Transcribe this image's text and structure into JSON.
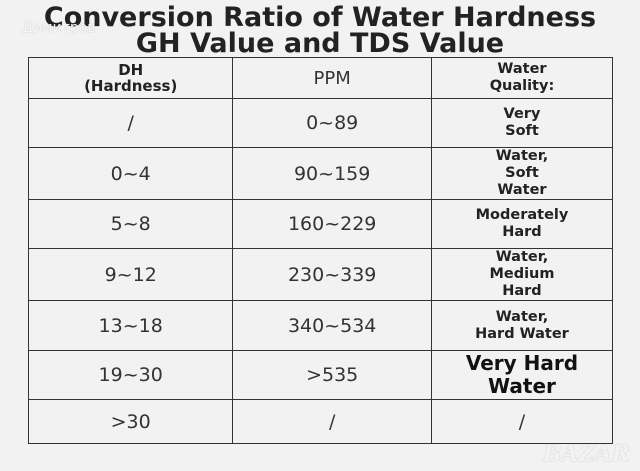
{
  "title_line1": "Conversion Ratio of Water Hardness",
  "title_line2": "GH Value and TDS Value",
  "watermark_user": "Димитров",
  "logo": "BAZAR",
  "headers": {
    "dh": "DH\n(Hardness)",
    "ppm": "PPM",
    "quality": "Water\nQuality:"
  },
  "rows": [
    {
      "dh": "/",
      "ppm": "0~89",
      "quality": "Very\nSoft"
    },
    {
      "dh": "0~4",
      "ppm": "90~159",
      "quality": "Water,\nSoft\nWater"
    },
    {
      "dh": "5~8",
      "ppm": "160~229",
      "quality": "Moderately\nHard"
    },
    {
      "dh": "9~12",
      "ppm": "230~339",
      "quality": "Water,\nMedium\nHard"
    },
    {
      "dh": "13~18",
      "ppm": "340~534",
      "quality": "Water,\nHard Water"
    },
    {
      "dh": "19~30",
      "ppm": ">535",
      "quality": "Very Hard\nWater"
    },
    {
      "dh": ">30",
      "ppm": "/",
      "quality": "/"
    }
  ]
}
